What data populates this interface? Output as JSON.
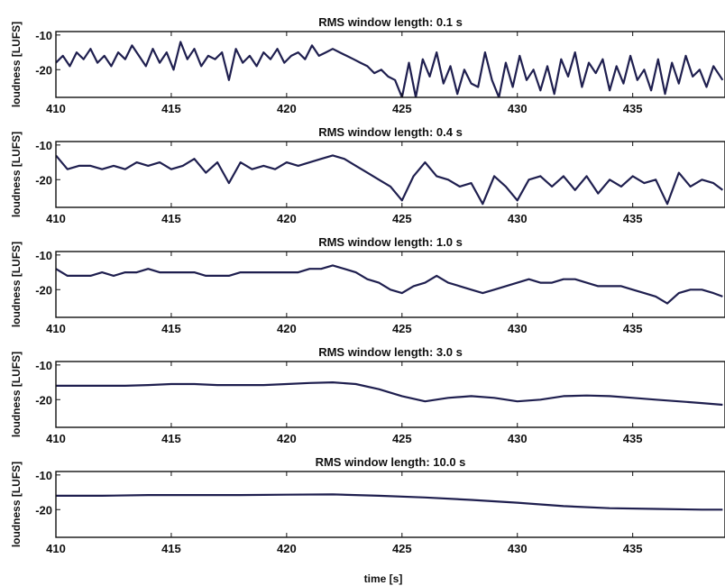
{
  "figure": {
    "xlabel": "time [s]",
    "ylabel": "loudness [LUFS]",
    "line_color": "#1f1f4f"
  },
  "chart_data": [
    {
      "type": "line",
      "title": "RMS window length: 0.1 s",
      "xlabel": "",
      "ylabel": "loudness [LUFS]",
      "xlim": [
        410,
        439
      ],
      "ylim": [
        -28,
        -9
      ],
      "xticks": [
        410,
        415,
        420,
        425,
        430,
        435
      ],
      "yticks": [
        -10,
        -20
      ],
      "series": [
        {
          "x": [
            410,
            410.3,
            410.6,
            410.9,
            411.2,
            411.5,
            411.8,
            412.1,
            412.4,
            412.7,
            413,
            413.3,
            413.6,
            413.9,
            414.2,
            414.5,
            414.8,
            415.1,
            415.4,
            415.7,
            416,
            416.3,
            416.6,
            416.9,
            417.2,
            417.5,
            417.8,
            418.1,
            418.4,
            418.7,
            419,
            419.3,
            419.6,
            419.9,
            420.2,
            420.5,
            420.8,
            421.1,
            421.4,
            421.7,
            422,
            422.3,
            422.6,
            422.9,
            423.2,
            423.5,
            423.8,
            424.1,
            424.4,
            424.7,
            425,
            425.3,
            425.6,
            425.9,
            426.2,
            426.5,
            426.8,
            427.1,
            427.4,
            427.7,
            428,
            428.3,
            428.6,
            428.9,
            429.2,
            429.5,
            429.8,
            430.1,
            430.4,
            430.7,
            431,
            431.3,
            431.6,
            431.9,
            432.2,
            432.5,
            432.8,
            433.1,
            433.4,
            433.7,
            434,
            434.3,
            434.6,
            434.9,
            435.2,
            435.5,
            435.8,
            436.1,
            436.4,
            436.7,
            437,
            437.3,
            437.6,
            437.9,
            438.2,
            438.5,
            438.9
          ],
          "y": [
            -18,
            -16,
            -19,
            -15,
            -17,
            -14,
            -18,
            -16,
            -19,
            -15,
            -17,
            -13,
            -16,
            -19,
            -14,
            -18,
            -15,
            -20,
            -12,
            -17,
            -14,
            -19,
            -16,
            -17,
            -15,
            -23,
            -14,
            -18,
            -16,
            -19,
            -15,
            -17,
            -14,
            -18,
            -16,
            -15,
            -17,
            -13,
            -16,
            -15,
            -14,
            -15,
            -16,
            -17,
            -18,
            -19,
            -21,
            -20,
            -22,
            -23,
            -28,
            -18,
            -28,
            -17,
            -22,
            -15,
            -24,
            -19,
            -27,
            -20,
            -24,
            -25,
            -15,
            -23,
            -28,
            -18,
            -25,
            -16,
            -23,
            -20,
            -26,
            -19,
            -27,
            -17,
            -22,
            -15,
            -25,
            -18,
            -21,
            -17,
            -26,
            -19,
            -24,
            -16,
            -23,
            -20,
            -26,
            -17,
            -27,
            -18,
            -24,
            -16,
            -22,
            -20,
            -25,
            -19,
            -23
          ]
        }
      ]
    },
    {
      "type": "line",
      "title": "RMS window length: 0.4 s",
      "xlabel": "",
      "ylabel": "loudness [LUFS]",
      "xlim": [
        410,
        439
      ],
      "ylim": [
        -28,
        -9
      ],
      "xticks": [
        410,
        415,
        420,
        425,
        430,
        435
      ],
      "yticks": [
        -10,
        -20
      ],
      "series": [
        {
          "x": [
            410,
            410.5,
            411,
            411.5,
            412,
            412.5,
            413,
            413.5,
            414,
            414.5,
            415,
            415.5,
            416,
            416.5,
            417,
            417.5,
            418,
            418.5,
            419,
            419.5,
            420,
            420.5,
            421,
            421.5,
            422,
            422.5,
            423,
            423.5,
            424,
            424.5,
            425,
            425.5,
            426,
            426.5,
            427,
            427.5,
            428,
            428.5,
            429,
            429.5,
            430,
            430.5,
            431,
            431.5,
            432,
            432.5,
            433,
            433.5,
            434,
            434.5,
            435,
            435.5,
            436,
            436.5,
            437,
            437.5,
            438,
            438.5,
            438.9
          ],
          "y": [
            -13,
            -17,
            -16,
            -16,
            -17,
            -16,
            -17,
            -15,
            -16,
            -15,
            -17,
            -16,
            -14,
            -18,
            -15,
            -21,
            -15,
            -17,
            -16,
            -17,
            -15,
            -16,
            -15,
            -14,
            -13,
            -14,
            -16,
            -18,
            -20,
            -22,
            -26,
            -19,
            -15,
            -19,
            -20,
            -22,
            -21,
            -27,
            -19,
            -22,
            -26,
            -20,
            -19,
            -22,
            -19,
            -23,
            -19,
            -24,
            -20,
            -22,
            -19,
            -21,
            -20,
            -27,
            -18,
            -22,
            -20,
            -21,
            -23
          ]
        }
      ]
    },
    {
      "type": "line",
      "title": "RMS window length: 1.0 s",
      "xlabel": "",
      "ylabel": "loudness [LUFS]",
      "xlim": [
        410,
        439
      ],
      "ylim": [
        -28,
        -9
      ],
      "xticks": [
        410,
        415,
        420,
        425,
        430,
        435
      ],
      "yticks": [
        -10,
        -20
      ],
      "series": [
        {
          "x": [
            410,
            410.5,
            411,
            411.5,
            412,
            412.5,
            413,
            413.5,
            414,
            414.5,
            415,
            415.5,
            416,
            416.5,
            417,
            417.5,
            418,
            418.5,
            419,
            419.5,
            420,
            420.5,
            421,
            421.5,
            422,
            422.5,
            423,
            423.5,
            424,
            424.5,
            425,
            425.5,
            426,
            426.5,
            427,
            427.5,
            428,
            428.5,
            429,
            429.5,
            430,
            430.5,
            431,
            431.5,
            432,
            432.5,
            433,
            433.5,
            434,
            434.5,
            435,
            435.5,
            436,
            436.5,
            437,
            437.5,
            438,
            438.5,
            438.9
          ],
          "y": [
            -14,
            -16,
            -16,
            -16,
            -15,
            -16,
            -15,
            -15,
            -14,
            -15,
            -15,
            -15,
            -15,
            -16,
            -16,
            -16,
            -15,
            -15,
            -15,
            -15,
            -15,
            -15,
            -14,
            -14,
            -13,
            -14,
            -15,
            -17,
            -18,
            -20,
            -21,
            -19,
            -18,
            -16,
            -18,
            -19,
            -20,
            -21,
            -20,
            -19,
            -18,
            -17,
            -18,
            -18,
            -17,
            -17,
            -18,
            -19,
            -19,
            -19,
            -20,
            -21,
            -22,
            -24,
            -21,
            -20,
            -20,
            -21,
            -22
          ]
        }
      ]
    },
    {
      "type": "line",
      "title": "RMS window length: 3.0 s",
      "xlabel": "",
      "ylabel": "loudness [LUFS]",
      "xlim": [
        410,
        439
      ],
      "ylim": [
        -28,
        -9
      ],
      "xticks": [
        410,
        415,
        420,
        425,
        430,
        435
      ],
      "yticks": [
        -10,
        -20
      ],
      "series": [
        {
          "x": [
            410,
            411,
            412,
            413,
            414,
            415,
            416,
            417,
            418,
            419,
            420,
            421,
            422,
            423,
            424,
            425,
            426,
            427,
            428,
            429,
            430,
            431,
            432,
            433,
            434,
            435,
            436,
            437,
            438,
            438.9
          ],
          "y": [
            -16,
            -16,
            -16,
            -16,
            -15.8,
            -15.5,
            -15.5,
            -15.8,
            -15.8,
            -15.8,
            -15.5,
            -15.2,
            -15,
            -15.5,
            -17,
            -19,
            -20.5,
            -19.5,
            -19,
            -19.5,
            -20.5,
            -20,
            -19,
            -18.8,
            -19,
            -19.5,
            -20,
            -20.5,
            -21,
            -21.5
          ]
        }
      ]
    },
    {
      "type": "line",
      "title": "RMS window length: 10.0 s",
      "xlabel": "time [s]",
      "ylabel": "loudness [LUFS]",
      "xlim": [
        410,
        439
      ],
      "ylim": [
        -28,
        -9
      ],
      "xticks": [
        410,
        415,
        420,
        425,
        430,
        435
      ],
      "yticks": [
        -10,
        -20
      ],
      "series": [
        {
          "x": [
            410,
            412,
            414,
            416,
            418,
            420,
            422,
            424,
            426,
            428,
            430,
            432,
            434,
            436,
            438,
            438.9
          ],
          "y": [
            -16,
            -16,
            -15.8,
            -15.8,
            -15.8,
            -15.7,
            -15.6,
            -16,
            -16.5,
            -17.2,
            -18,
            -19,
            -19.6,
            -19.8,
            -20,
            -20
          ]
        }
      ]
    }
  ]
}
